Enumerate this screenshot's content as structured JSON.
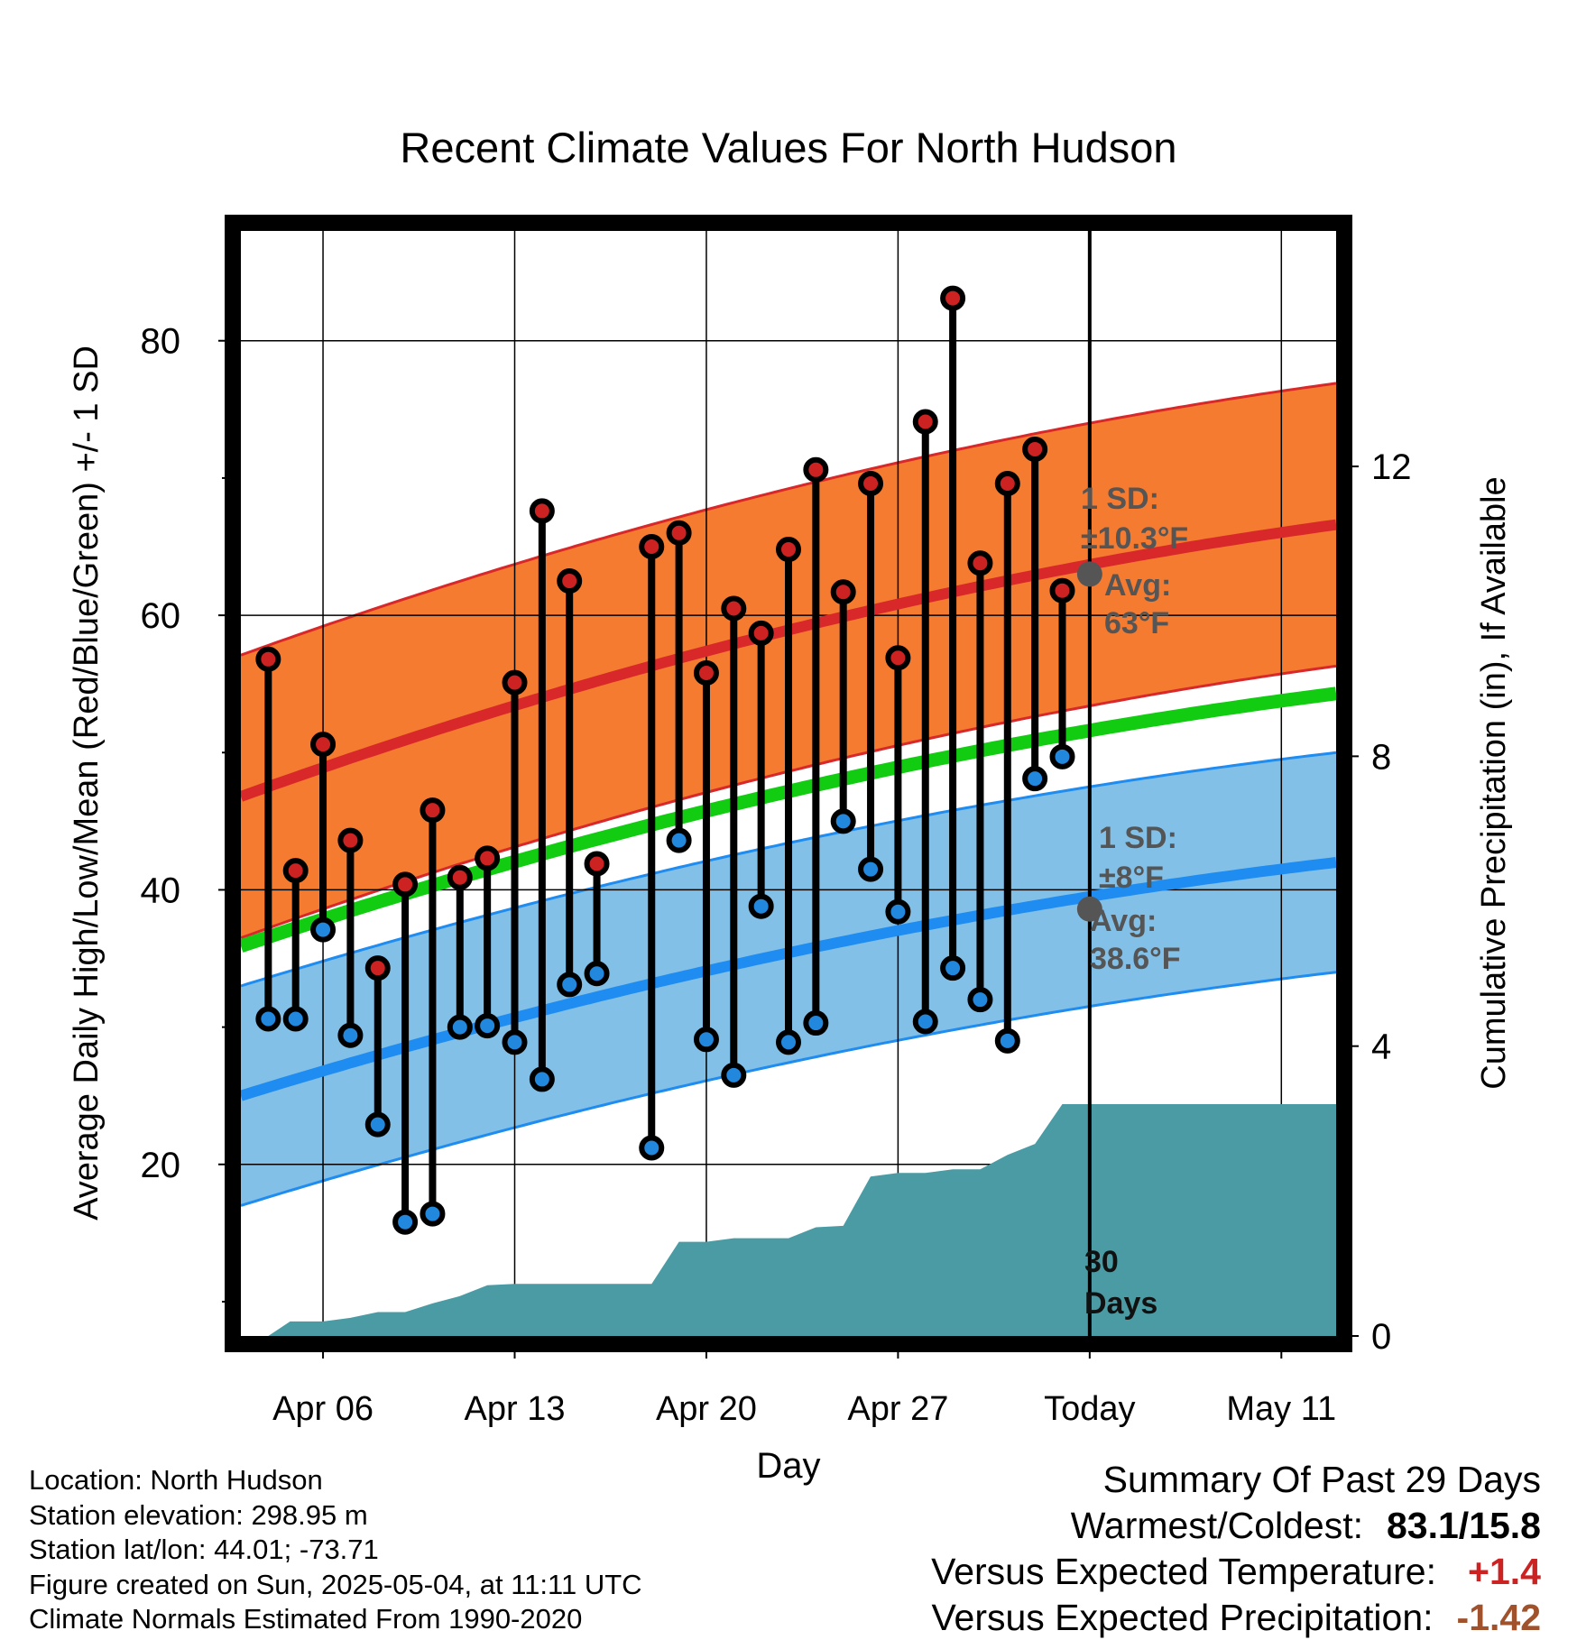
{
  "chart_data": {
    "type": "line",
    "title": "Recent Climate Values For North Hudson",
    "xlabel": "Day",
    "ylabel": "Average Daily High/Low/Mean (Red/Blue/Green) +/- 1 SD",
    "y2label": "Cumulative Precipitation (in), If Available",
    "ylim": [
      7.5,
      88
    ],
    "y2lim": [
      0,
      15.25
    ],
    "xlim": [
      0,
      40
    ],
    "y_ticks": [
      "20",
      "40",
      "60",
      "80"
    ],
    "y2_ticks": [
      "0",
      "4",
      "8",
      "12"
    ],
    "x_ticks": [
      {
        "day": 3,
        "label": "Apr 06"
      },
      {
        "day": 10,
        "label": "Apr 13"
      },
      {
        "day": 17,
        "label": "Apr 20"
      },
      {
        "day": 24,
        "label": "Apr 27"
      },
      {
        "day": 31,
        "label": "Today"
      },
      {
        "day": 38,
        "label": "May 11"
      }
    ],
    "today_day": 31,
    "today_marker_label": "30\nDays",
    "normals": {
      "high_start": 46.8,
      "high_end": 66.6,
      "low_start": 25.0,
      "low_end": 42.0,
      "mean_start": 35.9,
      "mean_end": 54.3,
      "high_sd_label": "1 SD:\n±10.3°F",
      "high_avg_label": "Avg:\n63°F",
      "high_avg_value": 63,
      "low_sd_label": "1 SD:\n±8°F",
      "low_avg_label": "Avg:\n38.6°F",
      "low_avg_value": 38.6
    },
    "high_sd": 10.3,
    "low_sd": 8,
    "series": [
      {
        "name": "Daily High",
        "color": "#cc2222",
        "x": [
          1,
          2,
          3,
          4,
          5,
          6,
          7,
          8,
          9,
          10,
          11,
          12,
          13,
          15,
          16,
          17,
          18,
          19,
          20,
          21,
          22,
          23,
          24,
          25,
          26,
          27,
          28,
          29,
          30
        ],
        "values": [
          56.8,
          41.4,
          50.6,
          43.6,
          34.3,
          40.4,
          45.8,
          40.9,
          42.3,
          55.1,
          67.6,
          62.5,
          41.9,
          65.0,
          66.0,
          55.8,
          60.5,
          58.7,
          64.8,
          70.6,
          61.7,
          69.6,
          56.9,
          74.1,
          83.1,
          63.8,
          69.6,
          72.1,
          61.8
        ]
      },
      {
        "name": "Daily Low",
        "color": "#2288dd",
        "x": [
          1,
          2,
          3,
          4,
          5,
          6,
          7,
          8,
          9,
          10,
          11,
          12,
          13,
          15,
          16,
          17,
          18,
          19,
          20,
          21,
          22,
          23,
          24,
          25,
          26,
          27,
          28,
          29,
          30
        ],
        "values": [
          30.6,
          30.6,
          37.1,
          29.4,
          22.9,
          15.8,
          16.4,
          30.0,
          30.1,
          28.9,
          26.2,
          33.1,
          33.9,
          21.2,
          43.6,
          29.1,
          26.5,
          38.8,
          28.9,
          30.3,
          45.0,
          41.5,
          38.4,
          30.4,
          34.3,
          32.0,
          29.0,
          48.1,
          49.7
        ]
      }
    ],
    "precipitation": {
      "name": "Cumulative Precipitation",
      "color": "#4a9ba4",
      "x": [
        1,
        1.8,
        3,
        4,
        5,
        6,
        7,
        8,
        9,
        10,
        11,
        12,
        13,
        15,
        16,
        17,
        18,
        19,
        20,
        21,
        22,
        23,
        24,
        25,
        26,
        27,
        28,
        29,
        30,
        31,
        40
      ],
      "values": [
        0.0,
        0.2,
        0.2,
        0.25,
        0.33,
        0.33,
        0.45,
        0.55,
        0.7,
        0.72,
        0.72,
        0.72,
        0.72,
        0.72,
        1.3,
        1.3,
        1.35,
        1.35,
        1.35,
        1.5,
        1.52,
        2.2,
        2.25,
        2.25,
        2.3,
        2.3,
        2.5,
        2.65,
        3.2,
        3.2,
        3.2
      ]
    },
    "grid": true,
    "colors": {
      "high_band": "#f47b30",
      "high_line": "#d8282a",
      "low_band": "#82c0e8",
      "low_line": "#1e8cf0",
      "mean_line": "#11cc11",
      "precip": "#4a9ba4",
      "sd_label": "#555555"
    }
  },
  "footer": {
    "location": "Location: North Hudson",
    "elevation": "Station elevation: 298.95 m",
    "latlon": "Station lat/lon: 44.01; -73.71",
    "created": "Figure created on Sun, 2025-05-04, at 11:11 UTC",
    "normals": "Climate Normals Estimated From 1990-2020"
  },
  "summary": {
    "title": "Summary Of Past 29 Days",
    "warm_cold_label": "Warmest/Coldest:",
    "warm_cold_value": "83.1/15.8",
    "temp_label": "Versus Expected Temperature:",
    "temp_value": "+1.4",
    "precip_label": "Versus Expected Precipitation:",
    "precip_value": "-1.42"
  }
}
